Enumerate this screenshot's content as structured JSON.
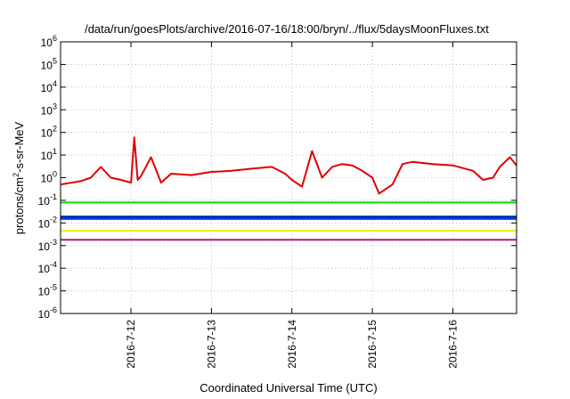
{
  "chart_data": {
    "type": "line",
    "title": "/data/run/goesPlots/archive/2016-07-16/18:00/bryn/../flux/5daysMoonFluxes.txt",
    "xlabel": "Coordinated Universal Time (UTC)",
    "ylabel_parts": [
      "protons/cm",
      "2",
      "-s-sr-MeV"
    ],
    "yscale": "log",
    "ylim": [
      1e-06,
      1000000.0
    ],
    "y_ticks": [
      {
        "base": "10",
        "exp": "-6"
      },
      {
        "base": "10",
        "exp": "-5"
      },
      {
        "base": "10",
        "exp": "-4"
      },
      {
        "base": "10",
        "exp": "-3"
      },
      {
        "base": "10",
        "exp": "-2"
      },
      {
        "base": "10",
        "exp": "-1"
      },
      {
        "base": "10",
        "exp": "0"
      },
      {
        "base": "10",
        "exp": "1"
      },
      {
        "base": "10",
        "exp": "2"
      },
      {
        "base": "10",
        "exp": "3"
      },
      {
        "base": "10",
        "exp": "4"
      },
      {
        "base": "10",
        "exp": "5"
      },
      {
        "base": "10",
        "exp": "6"
      }
    ],
    "xlim": [
      "2016-07-11T03:00",
      "2016-07-16T19:00"
    ],
    "x_ticks": [
      "2016-7-12",
      "2016-7-13",
      "2016-7-14",
      "2016-7-15",
      "2016-7-16"
    ],
    "grid": true,
    "series": [
      {
        "color": "#e00000",
        "time": [
          "2016-07-11T03:00",
          "2016-07-11T09:00",
          "2016-07-11T12:00",
          "2016-07-11T15:00",
          "2016-07-11T18:00",
          "2016-07-11T21:00",
          "2016-07-12T00:00",
          "2016-07-12T01:00",
          "2016-07-12T02:00",
          "2016-07-12T03:00",
          "2016-07-12T06:00",
          "2016-07-12T09:00",
          "2016-07-12T12:00",
          "2016-07-12T18:00",
          "2016-07-13T00:00",
          "2016-07-13T06:00",
          "2016-07-13T12:00",
          "2016-07-13T18:00",
          "2016-07-13T22:00",
          "2016-07-14T00:00",
          "2016-07-14T03:00",
          "2016-07-14T06:00",
          "2016-07-14T09:00",
          "2016-07-14T12:00",
          "2016-07-14T15:00",
          "2016-07-14T18:00",
          "2016-07-14T21:00",
          "2016-07-15T00:00",
          "2016-07-15T02:00",
          "2016-07-15T06:00",
          "2016-07-15T09:00",
          "2016-07-15T12:00",
          "2016-07-15T18:00",
          "2016-07-16T00:00",
          "2016-07-16T06:00",
          "2016-07-16T09:00",
          "2016-07-16T12:00",
          "2016-07-16T14:00",
          "2016-07-16T17:00",
          "2016-07-16T19:00"
        ],
        "values": [
          0.5,
          0.7,
          1.0,
          3.0,
          1.0,
          0.8,
          0.6,
          60,
          0.8,
          1.2,
          8,
          0.6,
          1.5,
          1.3,
          1.8,
          2.0,
          2.5,
          3.0,
          1.5,
          0.8,
          0.4,
          15,
          1.0,
          3.0,
          4.0,
          3.5,
          2.0,
          1.0,
          0.2,
          0.5,
          4.0,
          5.0,
          4.0,
          3.5,
          2.0,
          0.8,
          1.0,
          3.0,
          8.0,
          3.5
        ]
      },
      {
        "color": "#00e000",
        "time": [
          "2016-07-11T03:00",
          "2016-07-16T19:00"
        ],
        "values": [
          0.08,
          0.08
        ]
      },
      {
        "color": "#00c0c0",
        "time": [
          "2016-07-11T03:00",
          "2016-07-16T19:00"
        ],
        "values": [
          0.02,
          0.02
        ]
      },
      {
        "color": "#0040ff",
        "time": [
          "2016-07-11T03:00",
          "2016-07-16T19:00"
        ],
        "values": [
          0.015,
          0.015
        ]
      },
      {
        "color": "#00008b",
        "time": [
          "2016-07-11T03:00",
          "2016-07-16T19:00"
        ],
        "values": [
          0.018,
          0.018
        ]
      },
      {
        "color": "#f0f000",
        "time": [
          "2016-07-11T03:00",
          "2016-07-16T19:00"
        ],
        "values": [
          0.0045,
          0.0045
        ]
      },
      {
        "color": "#a02080",
        "time": [
          "2016-07-11T03:00",
          "2016-07-16T19:00"
        ],
        "values": [
          0.0018,
          0.0018
        ]
      }
    ]
  }
}
